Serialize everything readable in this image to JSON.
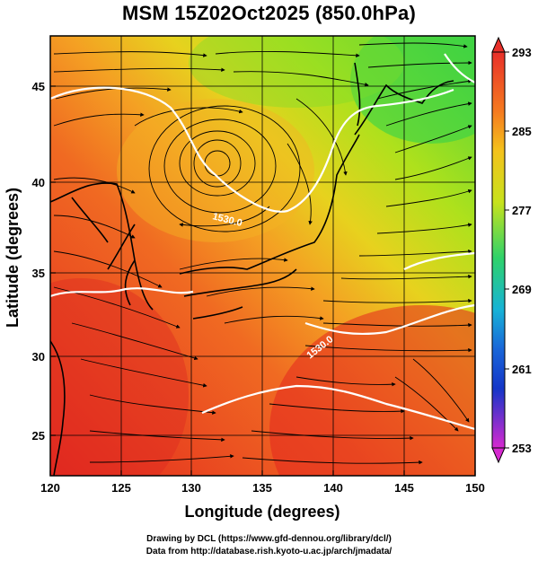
{
  "title": "MSM 15Z02Oct2025 (850.0hPa)",
  "axes": {
    "xlabel": "Longitude (degrees)",
    "ylabel": "Latitude  (degrees)",
    "x_ticks": [
      "120",
      "125",
      "130",
      "135",
      "140",
      "145",
      "150"
    ],
    "y_ticks": [
      "25",
      "30",
      "35",
      "40",
      "45"
    ]
  },
  "colorbar": {
    "labels": [
      "293",
      "285",
      "277",
      "269",
      "261",
      "253"
    ],
    "colors": [
      "#e8302a",
      "#f7a21e",
      "#c7e21c",
      "#2fd26a",
      "#17b3d6",
      "#1436c8",
      "#d62ad0"
    ]
  },
  "contour_labels": [
    "1530.0",
    "1530.0"
  ],
  "credits": {
    "line1": "Drawing by DCL (https://www.gfd-dennou.org/library/dcl/)",
    "line2": "Data from http://database.rish.kyoto-u.ac.jp/arch/jmadata/"
  },
  "chart_data": {
    "type": "heatmap",
    "title": "MSM 15Z02Oct2025 (850.0hPa)",
    "xlabel": "Longitude (degrees)",
    "ylabel": "Latitude  (degrees)",
    "xlim": [
      120,
      150
    ],
    "ylim": [
      22.4,
      47.6
    ],
    "colorbar_range": [
      253,
      293
    ],
    "colorbar_ticks": [
      293,
      285,
      277,
      269,
      261,
      253
    ],
    "grid": true,
    "overlays": [
      "streamlines",
      "coastlines",
      "geopotential height contours"
    ]
  }
}
